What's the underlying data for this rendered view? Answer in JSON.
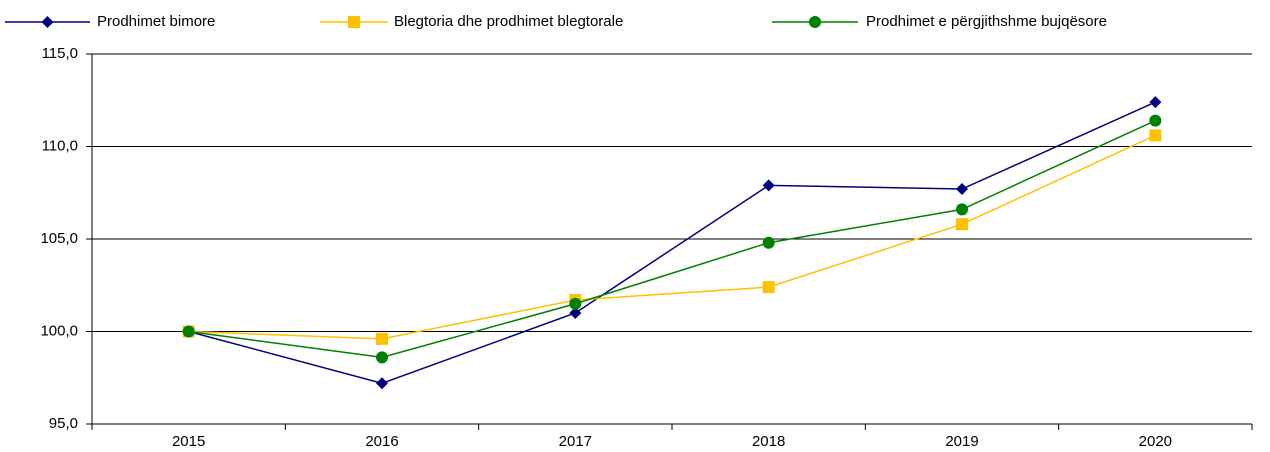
{
  "chart_data": {
    "type": "line",
    "categories": [
      "2015",
      "2016",
      "2017",
      "2018",
      "2019",
      "2020"
    ],
    "series": [
      {
        "name": "Prodhimet bimore",
        "color": "#000080",
        "marker": "diamond",
        "values": [
          100.0,
          97.2,
          101.0,
          107.9,
          107.7,
          112.4
        ]
      },
      {
        "name": "Blegtoria dhe prodhimet blegtorale",
        "color": "#ffc000",
        "marker": "square",
        "values": [
          100.0,
          99.6,
          101.7,
          102.4,
          105.8,
          110.6
        ]
      },
      {
        "name": "Prodhimet e përgjithshme bujqësore",
        "color": "#008000",
        "marker": "circle",
        "values": [
          100.0,
          98.6,
          101.5,
          104.8,
          106.6,
          111.4
        ]
      }
    ],
    "ylim": [
      95,
      115
    ],
    "yticks": [
      {
        "value": 95,
        "label": "95,0"
      },
      {
        "value": 100,
        "label": "100,0"
      },
      {
        "value": 105,
        "label": "105,0"
      },
      {
        "value": 110,
        "label": "110,0"
      },
      {
        "value": 115,
        "label": "115,0"
      }
    ],
    "grid": true,
    "legend": "top"
  }
}
